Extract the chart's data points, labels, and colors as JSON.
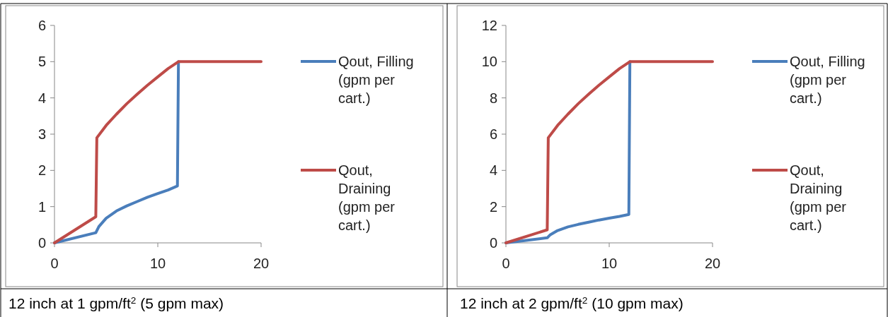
{
  "chart_data": [
    {
      "type": "line",
      "xlim": [
        0,
        20
      ],
      "xticks": [
        0,
        10,
        20
      ],
      "ylim": [
        0,
        6
      ],
      "yticks": [
        0,
        1,
        2,
        3,
        4,
        5,
        6
      ],
      "legend": "right",
      "grid": false,
      "line_style": "solid",
      "annotations": [
        "12 inch at 1 gpm/ft$^{2}$ (5 gpm max)"
      ],
      "series": [
        {
          "name": "Qout, Filling (gpm per cart.)",
          "color": "#4a7ebb",
          "x": [
            0,
            4,
            4.3,
            5,
            6,
            7,
            8,
            9,
            10,
            11,
            11.9,
            12
          ],
          "values": [
            0,
            0.28,
            0.45,
            0.68,
            0.88,
            1.02,
            1.14,
            1.26,
            1.36,
            1.46,
            1.57,
            5
          ]
        },
        {
          "name": "Qout, Draining (gpm per cart.)",
          "color": "#be4b48",
          "x": [
            0,
            4,
            4.1,
            5,
            6,
            7,
            8,
            9,
            10,
            11,
            12,
            20
          ],
          "values": [
            0,
            0.72,
            2.9,
            3.24,
            3.55,
            3.84,
            4.1,
            4.35,
            4.58,
            4.81,
            5,
            5
          ]
        }
      ]
    },
    {
      "type": "line",
      "xlim": [
        0,
        20
      ],
      "xticks": [
        0,
        10,
        20
      ],
      "ylim": [
        0,
        12
      ],
      "yticks": [
        0,
        2,
        4,
        6,
        8,
        10,
        12
      ],
      "legend": "right",
      "grid": false,
      "line_style": "solid",
      "annotations": [
        "12 inch at 2 gpm/ft$^{2}$ (10 gpm max)"
      ],
      "series": [
        {
          "name": "Qout, Filling (gpm per cart.)",
          "color": "#4a7ebb",
          "x": [
            0,
            4,
            4.3,
            5,
            6,
            7,
            8,
            9,
            10,
            11,
            11.9,
            12
          ],
          "values": [
            0,
            0.28,
            0.45,
            0.68,
            0.88,
            1.02,
            1.14,
            1.26,
            1.36,
            1.46,
            1.57,
            10
          ]
        },
        {
          "name": "Qout, Draining (gpm per cart.)",
          "color": "#be4b48",
          "x": [
            0,
            4,
            4.1,
            5,
            6,
            7,
            8,
            9,
            10,
            11,
            12,
            20
          ],
          "values": [
            0,
            0.72,
            5.8,
            6.48,
            7.1,
            7.68,
            8.2,
            8.7,
            9.16,
            9.62,
            10,
            10
          ]
        }
      ]
    }
  ]
}
